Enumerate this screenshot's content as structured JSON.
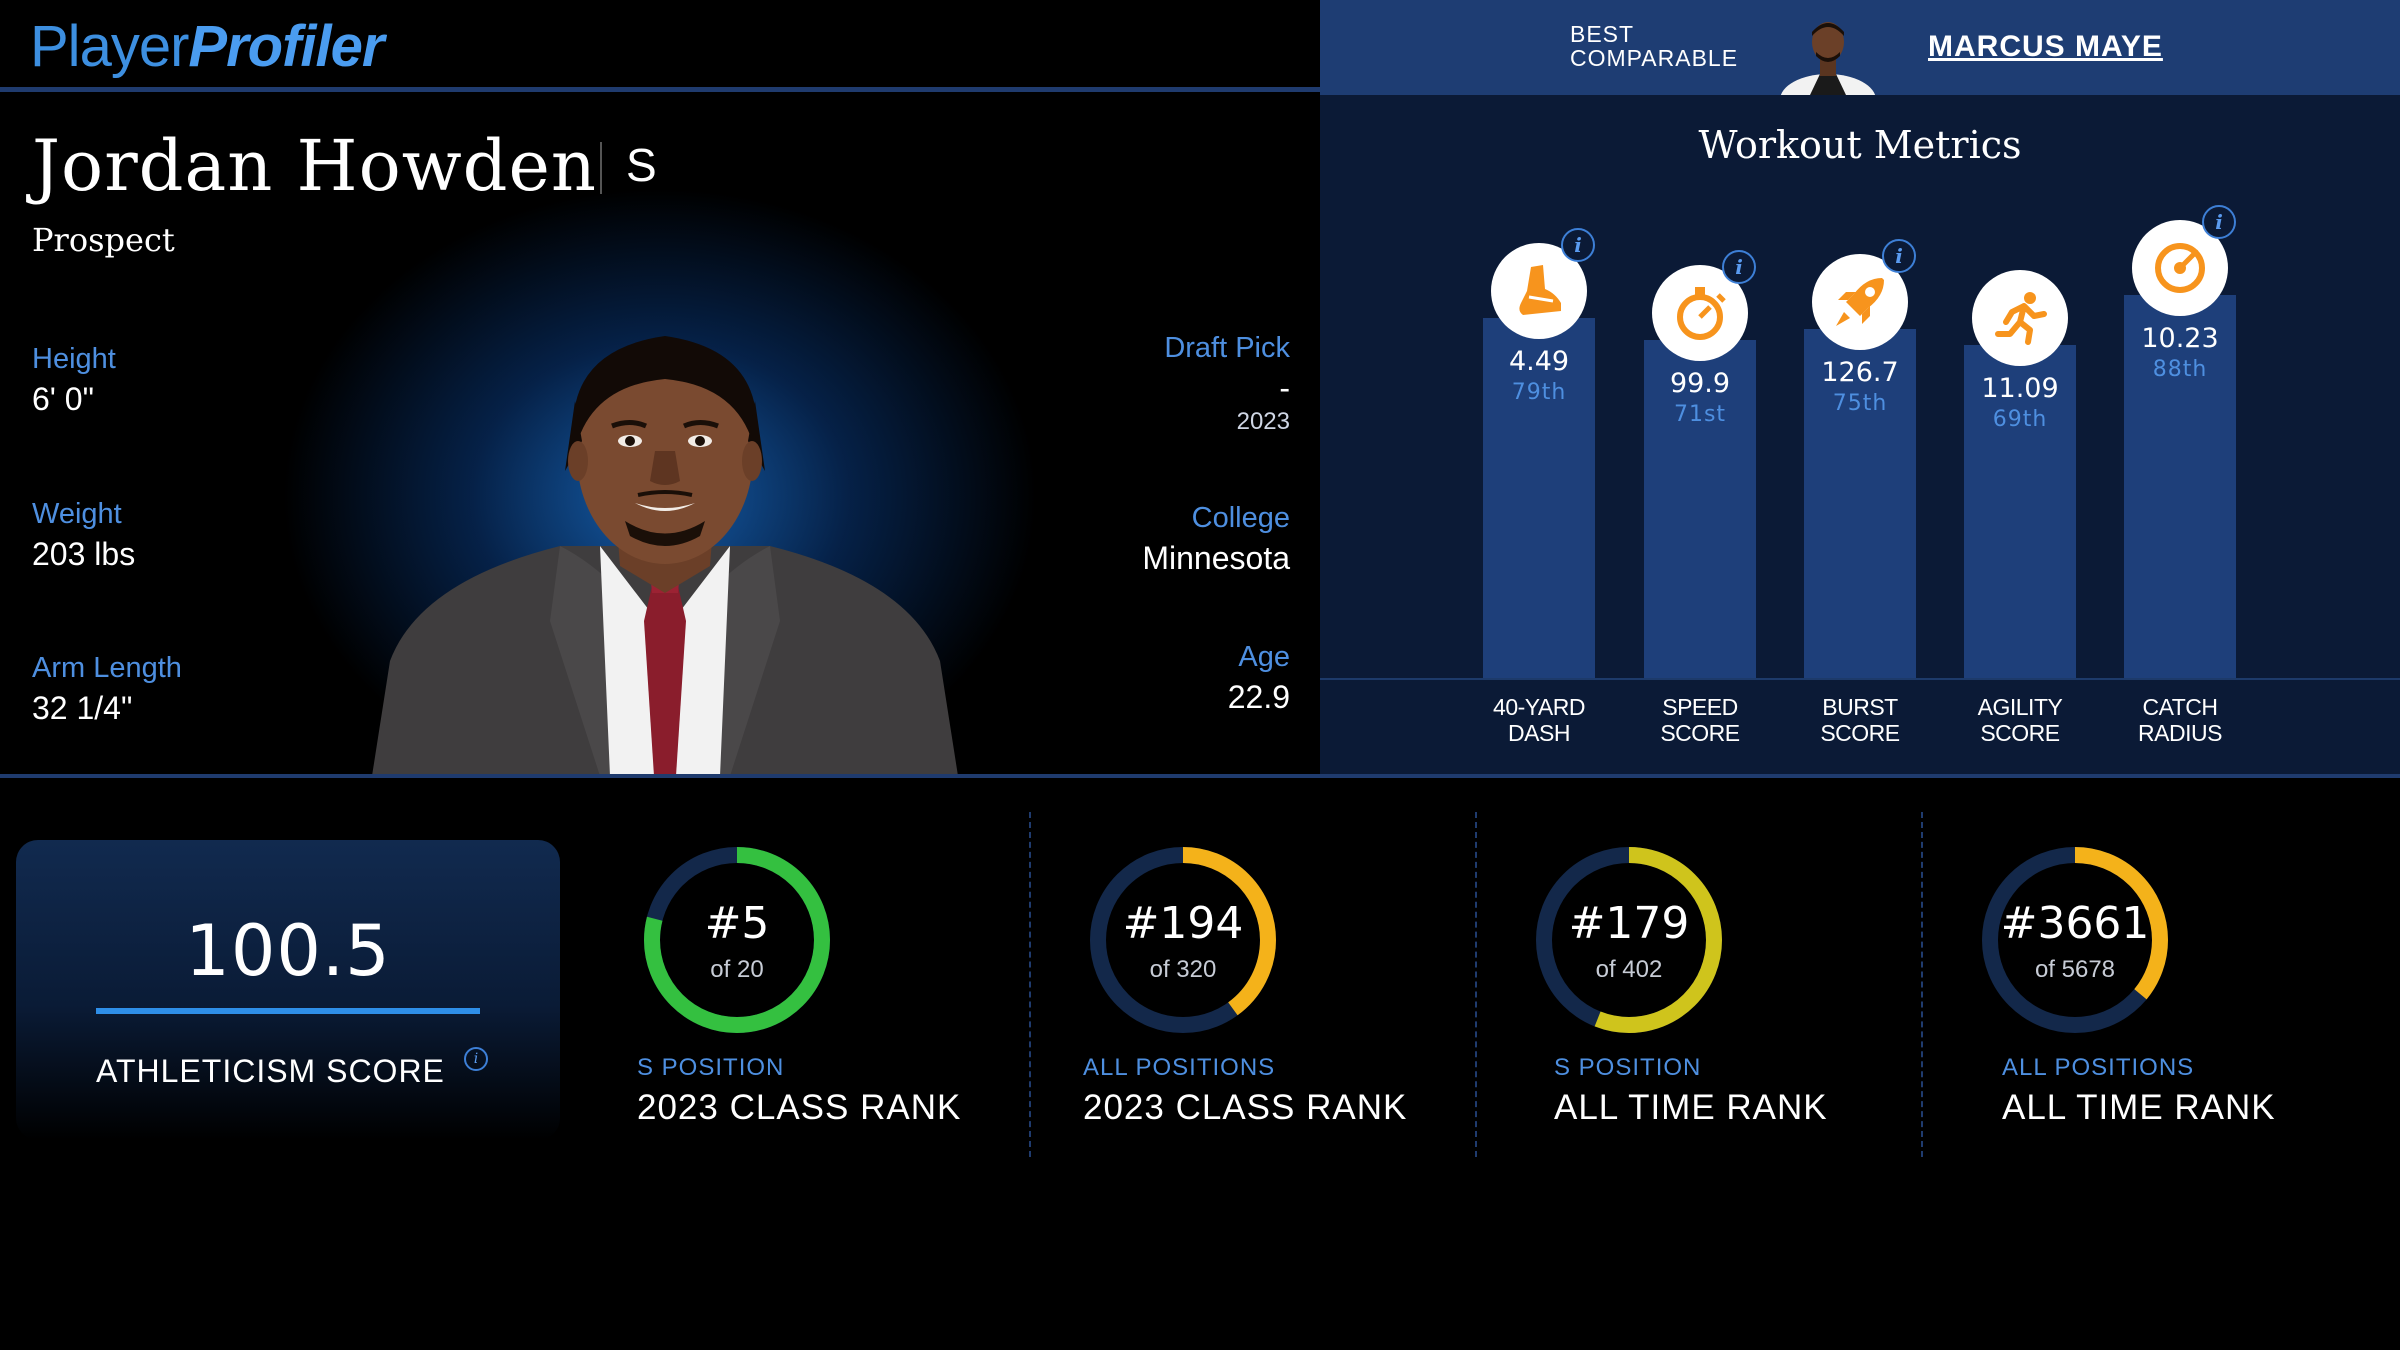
{
  "header": {
    "logo_light": "Player",
    "logo_bold": "Profiler",
    "best_comparable_label_1": "BEST",
    "best_comparable_label_2": "COMPARABLE",
    "best_comparable_name": "MARCUS MAYE"
  },
  "player": {
    "name": "Jordan Howden",
    "position": "S",
    "status": "Prospect",
    "height_label": "Height",
    "height_value": "6' 0\"",
    "weight_label": "Weight",
    "weight_value": "203 lbs",
    "arm_label": "Arm Length",
    "arm_value": "32 1/4\"",
    "draft_label": "Draft Pick",
    "draft_value": "-",
    "draft_year": "2023",
    "college_label": "College",
    "college_value": "Minnesota",
    "age_label": "Age",
    "age_value": "22.9"
  },
  "workout": {
    "title": "Workout Metrics",
    "metrics": [
      {
        "label": "40-YARD\nDASH",
        "value": "4.49",
        "percentile_text": "79th",
        "percentile": 79,
        "icon": "shoe-icon",
        "info": "i"
      },
      {
        "label": "SPEED\nSCORE",
        "value": "99.9",
        "percentile_text": "71st",
        "percentile": 71,
        "icon": "stopwatch-icon",
        "info": "i"
      },
      {
        "label": "BURST\nSCORE",
        "value": "126.7",
        "percentile_text": "75th",
        "percentile": 75,
        "icon": "rocket-icon",
        "info": "i"
      },
      {
        "label": "AGILITY\nSCORE",
        "value": "11.09",
        "percentile_text": "69th",
        "percentile": 69,
        "icon": "runner-icon",
        "info": "i"
      },
      {
        "label": "CATCH\nRADIUS",
        "value": "10.23",
        "percentile_text": "88th",
        "percentile": 88,
        "icon": "target-icon",
        "info": "i"
      }
    ]
  },
  "athleticism": {
    "score": "100.5",
    "label": "ATHLETICISM SCORE",
    "info": "i"
  },
  "ranks": [
    {
      "rank": "#5",
      "of": "of 20",
      "sub": "S POSITION",
      "main": "2023 CLASS RANK",
      "fraction": 0.79,
      "color": "#34c040"
    },
    {
      "rank": "#194",
      "of": "of 320",
      "sub": "ALL POSITIONS",
      "main": "2023 CLASS RANK",
      "fraction": 0.4,
      "color": "#f4b21a"
    },
    {
      "rank": "#179",
      "of": "of 402",
      "sub": "S POSITION",
      "main": "ALL TIME RANK",
      "fraction": 0.56,
      "color": "#cfc41c"
    },
    {
      "rank": "#3661",
      "of": "of 5678",
      "sub": "ALL POSITIONS",
      "main": "ALL TIME RANK",
      "fraction": 0.36,
      "color": "#f4b21a"
    }
  ],
  "colors": {
    "accent_blue": "#4e8fe0",
    "bar_blue": "#1e3f7a",
    "icon_orange": "#f7941d",
    "ring_track": "#13284a"
  }
}
